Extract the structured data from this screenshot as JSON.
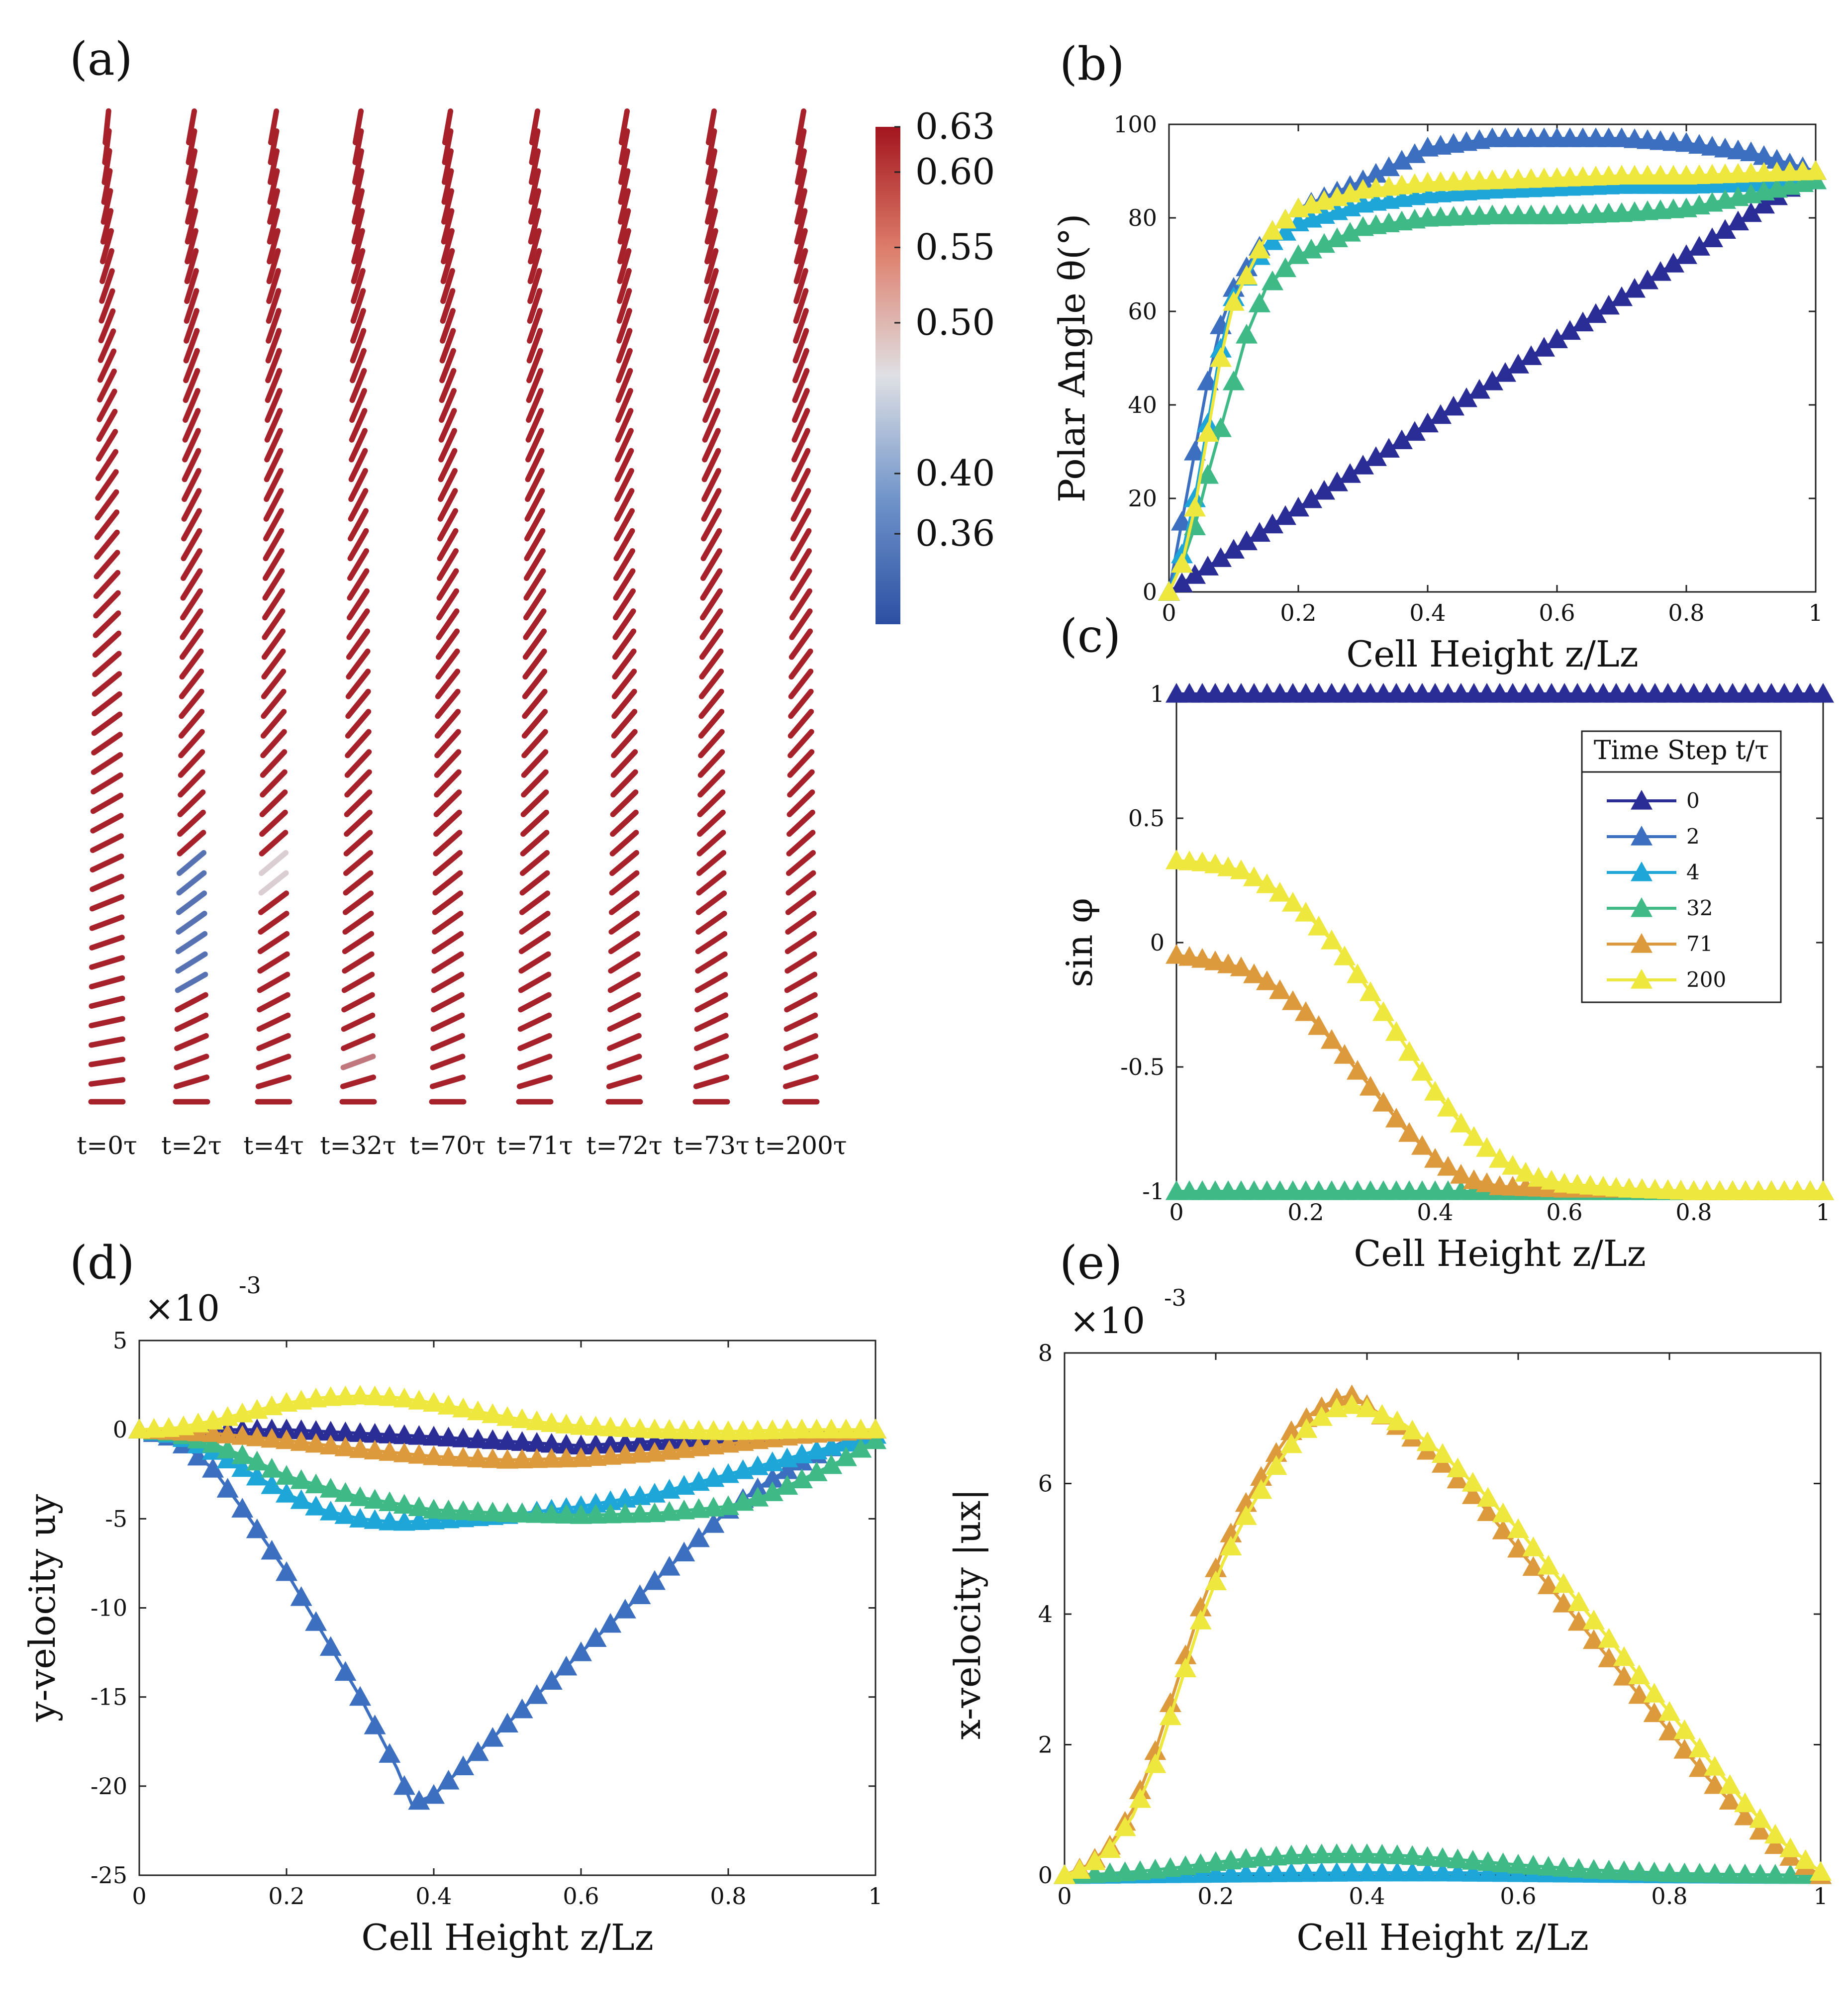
{
  "panel_a": {
    "label": "(a)",
    "time_labels": [
      "t=0τ",
      "t=2τ",
      "t=4τ",
      "t=32τ",
      "t=70τ",
      "t=71τ",
      "t=72τ",
      "t=73τ",
      "t=200τ"
    ],
    "colorbar": {
      "ticks": [
        "0.63",
        "0.60",
        "0.55",
        "0.50",
        "0.40",
        "0.36"
      ],
      "range": [
        0.3,
        0.63
      ],
      "low_color": "#2c4fa3",
      "mid_color": "#dfe0e4",
      "high_color": "#a3151e"
    }
  },
  "series_names": [
    "0",
    "2",
    "4",
    "32",
    "71",
    "200"
  ],
  "series_colors": [
    "#2b2d96",
    "#3c6fc0",
    "#1fa6d9",
    "#3fba86",
    "#dc9a3c",
    "#eee73e"
  ],
  "legend": {
    "title": "Time Step t/τ",
    "entries": [
      "0",
      "2",
      "4",
      "32",
      "71",
      "200"
    ]
  },
  "chart_data": [
    {
      "id": "b",
      "panel_label": "(b)",
      "type": "line",
      "xlabel": "Cell Height z/Lz",
      "ylabel": "Polar Angle θ(°)",
      "xlim": [
        0,
        1
      ],
      "ylim": [
        0,
        100
      ],
      "xticks": [
        "0",
        "0.2",
        "0.4",
        "0.6",
        "0.8",
        "1"
      ],
      "yticks": [
        "0",
        "20",
        "40",
        "60",
        "80",
        "100"
      ],
      "series": [
        {
          "name": "0",
          "x": [
            0,
            0.1,
            0.2,
            0.3,
            0.4,
            0.5,
            0.6,
            0.7,
            0.8,
            0.9,
            1
          ],
          "y": [
            0,
            9,
            18,
            27,
            36,
            45,
            54,
            63,
            72,
            81,
            90
          ]
        },
        {
          "name": "2",
          "x": [
            0,
            0.02,
            0.04,
            0.06,
            0.08,
            0.1,
            0.15,
            0.2,
            0.3,
            0.4,
            0.5,
            0.6,
            0.7,
            0.8,
            0.9,
            0.95,
            1
          ],
          "y": [
            0,
            15,
            30,
            45,
            57,
            65,
            76,
            82,
            88,
            95,
            97,
            97,
            97,
            96,
            94,
            92,
            90
          ]
        },
        {
          "name": "4",
          "x": [
            0,
            0.02,
            0.04,
            0.06,
            0.08,
            0.1,
            0.15,
            0.2,
            0.3,
            0.4,
            0.5,
            0.6,
            0.7,
            0.8,
            0.9,
            1
          ],
          "y": [
            0,
            8,
            20,
            36,
            52,
            63,
            74,
            79,
            83,
            85,
            86,
            86.5,
            87,
            87,
            87.5,
            88
          ]
        },
        {
          "name": "32",
          "x": [
            0,
            0.02,
            0.04,
            0.06,
            0.08,
            0.1,
            0.12,
            0.15,
            0.2,
            0.3,
            0.4,
            0.5,
            0.6,
            0.7,
            0.8,
            0.9,
            1
          ],
          "y": [
            0,
            6,
            14,
            25,
            35,
            45,
            55,
            65,
            72,
            78,
            80,
            80.5,
            80.5,
            81,
            82,
            85,
            88
          ]
        },
        {
          "name": "200",
          "x": [
            0,
            0.02,
            0.04,
            0.06,
            0.08,
            0.1,
            0.15,
            0.2,
            0.3,
            0.4,
            0.5,
            0.6,
            0.7,
            0.8,
            0.9,
            1
          ],
          "y": [
            0,
            6,
            18,
            34,
            50,
            62,
            76,
            82,
            86,
            87.5,
            88,
            88.5,
            89,
            89,
            89.5,
            90
          ]
        }
      ]
    },
    {
      "id": "c",
      "panel_label": "(c)",
      "type": "line",
      "xlabel": "Cell Height z/Lz",
      "ylabel": "sin φ",
      "xlim": [
        0,
        1
      ],
      "ylim": [
        -1,
        1
      ],
      "xticks": [
        "0",
        "0.2",
        "0.4",
        "0.6",
        "0.8",
        "1"
      ],
      "yticks": [
        "-1",
        "-0.5",
        "0",
        "0.5",
        "1"
      ],
      "series": [
        {
          "name": "0",
          "x": [
            0,
            0.2,
            0.4,
            0.6,
            0.8,
            1
          ],
          "y": [
            1,
            1,
            1,
            1,
            1,
            1
          ]
        },
        {
          "name": "32",
          "x": [
            0,
            0.2,
            0.4,
            0.6,
            0.8,
            1
          ],
          "y": [
            -1,
            -1,
            -1,
            -1,
            -1,
            -1
          ]
        },
        {
          "name": "71",
          "x": [
            0,
            0.05,
            0.1,
            0.15,
            0.2,
            0.25,
            0.3,
            0.35,
            0.4,
            0.45,
            0.5,
            0.6,
            0.7,
            0.8,
            0.9,
            1
          ],
          "y": [
            -0.05,
            -0.07,
            -0.1,
            -0.17,
            -0.28,
            -0.42,
            -0.58,
            -0.74,
            -0.87,
            -0.95,
            -0.98,
            -0.99,
            -0.99,
            -1,
            -1,
            -1
          ]
        },
        {
          "name": "200",
          "x": [
            0,
            0.05,
            0.1,
            0.15,
            0.2,
            0.25,
            0.3,
            0.35,
            0.4,
            0.45,
            0.5,
            0.55,
            0.6,
            0.7,
            0.8,
            0.9,
            1
          ],
          "y": [
            0.33,
            0.32,
            0.29,
            0.22,
            0.12,
            -0.02,
            -0.2,
            -0.4,
            -0.6,
            -0.76,
            -0.87,
            -0.94,
            -0.97,
            -0.99,
            -1,
            -1,
            -1
          ]
        }
      ]
    },
    {
      "id": "d",
      "panel_label": "(d)",
      "type": "line",
      "xlabel": "Cell Height z/Lz",
      "ylabel": "y-velocity uy",
      "multiplier": "×10",
      "multiplier_exp": "-3",
      "xlim": [
        0,
        1
      ],
      "ylim": [
        -25,
        5
      ],
      "xticks": [
        "0",
        "0.2",
        "0.4",
        "0.6",
        "0.8",
        "1"
      ],
      "yticks": [
        "-25",
        "-20",
        "-15",
        "-10",
        "-5",
        "0",
        "5"
      ],
      "series": [
        {
          "name": "0",
          "x": [
            0,
            0.2,
            0.4,
            0.6,
            0.8,
            1
          ],
          "y": [
            0,
            0,
            -0.4,
            -0.9,
            -0.4,
            0
          ]
        },
        {
          "name": "2",
          "x": [
            0,
            0.05,
            0.1,
            0.15,
            0.2,
            0.25,
            0.3,
            0.35,
            0.37,
            0.4,
            0.45,
            0.5,
            0.55,
            0.6,
            0.65,
            0.7,
            0.75,
            0.8,
            0.85,
            0.9,
            0.95,
            1
          ],
          "y": [
            0,
            -0.5,
            -2.2,
            -5,
            -8,
            -11.5,
            -15,
            -19,
            -21,
            -20.5,
            -18.5,
            -16.5,
            -14.5,
            -12.5,
            -10.5,
            -8.5,
            -6.5,
            -4.5,
            -3,
            -1.8,
            -0.8,
            0
          ]
        },
        {
          "name": "4",
          "x": [
            0,
            0.05,
            0.1,
            0.15,
            0.2,
            0.25,
            0.3,
            0.35,
            0.4,
            0.5,
            0.6,
            0.7,
            0.8,
            0.9,
            1
          ],
          "y": [
            0,
            -0.3,
            -1.2,
            -2.4,
            -3.6,
            -4.5,
            -5,
            -5.2,
            -5.1,
            -4.8,
            -4.3,
            -3.6,
            -2.5,
            -1.4,
            -0.3
          ]
        },
        {
          "name": "32",
          "x": [
            0,
            0.05,
            0.1,
            0.15,
            0.2,
            0.3,
            0.4,
            0.5,
            0.6,
            0.7,
            0.8,
            0.85,
            0.9,
            0.95,
            1
          ],
          "y": [
            0,
            -0.2,
            -0.8,
            -1.6,
            -2.6,
            -3.8,
            -4.5,
            -4.7,
            -4.8,
            -4.7,
            -4.3,
            -3.7,
            -2.8,
            -1.8,
            -0.6
          ]
        },
        {
          "name": "71",
          "x": [
            0,
            0.1,
            0.2,
            0.3,
            0.4,
            0.5,
            0.6,
            0.7,
            0.8,
            0.9,
            1
          ],
          "y": [
            0,
            -0.2,
            -0.6,
            -1.1,
            -1.5,
            -1.7,
            -1.6,
            -1.3,
            -0.8,
            -0.3,
            0
          ]
        },
        {
          "name": "200",
          "x": [
            0,
            0.05,
            0.1,
            0.15,
            0.2,
            0.25,
            0.3,
            0.35,
            0.4,
            0.45,
            0.5,
            0.55,
            0.6,
            0.7,
            0.8,
            0.9,
            1
          ],
          "y": [
            0,
            0.1,
            0.5,
            1,
            1.5,
            1.8,
            1.9,
            1.8,
            1.5,
            1.1,
            0.7,
            0.4,
            0.2,
            0,
            -0.1,
            0,
            0
          ]
        }
      ]
    },
    {
      "id": "e",
      "panel_label": "(e)",
      "type": "line",
      "xlabel": "Cell Height z/Lz",
      "ylabel": "x-velocity |ux|",
      "multiplier": "×10",
      "multiplier_exp": "-3",
      "xlim": [
        0,
        1
      ],
      "ylim": [
        0,
        8
      ],
      "xticks": [
        "0",
        "0.2",
        "0.4",
        "0.6",
        "0.8",
        "1"
      ],
      "yticks": [
        "0",
        "2",
        "4",
        "6",
        "8"
      ],
      "series": [
        {
          "name": "4",
          "x": [
            0,
            0.1,
            0.2,
            0.3,
            0.4,
            0.5,
            0.6,
            0.7,
            0.8,
            0.9,
            1
          ],
          "y": [
            0,
            0.01,
            0.02,
            0.03,
            0.04,
            0.04,
            0.03,
            0.02,
            0.01,
            0.005,
            0
          ]
        },
        {
          "name": "32",
          "x": [
            0,
            0.05,
            0.1,
            0.15,
            0.2,
            0.25,
            0.3,
            0.35,
            0.4,
            0.45,
            0.5,
            0.55,
            0.6,
            0.7,
            0.8,
            0.9,
            1
          ],
          "y": [
            0,
            0.02,
            0.06,
            0.12,
            0.2,
            0.26,
            0.3,
            0.32,
            0.32,
            0.3,
            0.26,
            0.21,
            0.16,
            0.08,
            0.03,
            0.01,
            0
          ]
        },
        {
          "name": "71",
          "x": [
            0,
            0.03,
            0.06,
            0.09,
            0.12,
            0.15,
            0.18,
            0.21,
            0.24,
            0.27,
            0.3,
            0.33,
            0.36,
            0.38,
            0.4,
            0.45,
            0.5,
            0.55,
            0.6,
            0.65,
            0.7,
            0.75,
            0.8,
            0.85,
            0.9,
            0.95,
            1
          ],
          "y": [
            0,
            0.15,
            0.45,
            1,
            1.9,
            3,
            4.1,
            5,
            5.7,
            6.3,
            6.8,
            7.1,
            7.3,
            7.35,
            7.2,
            6.8,
            6.3,
            5.7,
            5,
            4.3,
            3.6,
            2.9,
            2.2,
            1.5,
            0.9,
            0.35,
            0
          ]
        },
        {
          "name": "200",
          "x": [
            0,
            0.03,
            0.06,
            0.09,
            0.12,
            0.15,
            0.18,
            0.21,
            0.24,
            0.27,
            0.3,
            0.33,
            0.36,
            0.38,
            0.4,
            0.45,
            0.5,
            0.55,
            0.6,
            0.65,
            0.7,
            0.75,
            0.8,
            0.85,
            0.9,
            0.95,
            1
          ],
          "y": [
            0,
            0.12,
            0.4,
            0.9,
            1.7,
            2.8,
            3.9,
            4.8,
            5.5,
            6.1,
            6.6,
            6.95,
            7.15,
            7.2,
            7.15,
            6.9,
            6.45,
            5.9,
            5.3,
            4.6,
            3.9,
            3.2,
            2.5,
            1.8,
            1.1,
            0.5,
            0.05
          ]
        }
      ]
    }
  ]
}
